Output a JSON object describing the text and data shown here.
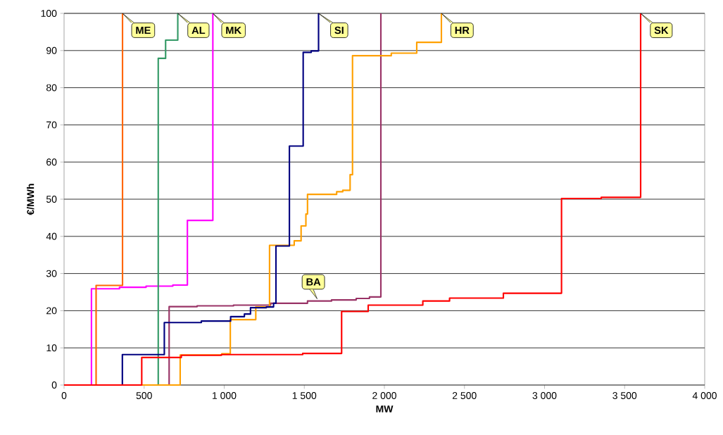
{
  "chart_data": {
    "type": "step",
    "xlabel": "MW",
    "ylabel": "€/MWh",
    "xlim": [
      0,
      4000
    ],
    "ylim": [
      0,
      100
    ],
    "xticks": [
      0,
      500,
      {
        "value": 1000,
        "label": "1 000"
      },
      {
        "value": 1500,
        "label": "1 500"
      },
      {
        "value": 2000,
        "label": "2 000"
      },
      {
        "value": 2500,
        "label": "2 500"
      },
      {
        "value": 3000,
        "label": "3 000"
      },
      {
        "value": 3500,
        "label": "3 500"
      },
      {
        "value": 4000,
        "label": "4 000"
      }
    ],
    "yticks": [
      0,
      10,
      20,
      30,
      40,
      50,
      60,
      70,
      80,
      90,
      100
    ],
    "grid": "y",
    "marker": "none",
    "line_style": "solid",
    "series": [
      {
        "color": "#ff00ff",
        "x": [
          0,
          171,
          346,
          512,
          679,
          770,
          929
        ],
        "values": [
          0,
          25.9,
          26.3,
          26.6,
          26.9,
          44.3,
          100
        ]
      },
      {
        "color": "#ff6600",
        "x": [
          0,
          200,
          365
        ],
        "values": [
          0,
          26.8,
          100
        ]
      },
      {
        "color": "#339966",
        "x": [
          0,
          588,
          634,
          710
        ],
        "values": [
          0,
          87.9,
          92.8,
          100
        ]
      },
      {
        "color": "#993366",
        "x": [
          0,
          656,
          831,
          1058,
          1290,
          1520,
          1670,
          1824,
          1907,
          1978
        ],
        "values": [
          0,
          21.1,
          21.3,
          21.5,
          22.0,
          22.6,
          22.9,
          23.3,
          23.7,
          100
        ]
      },
      {
        "color": "#ffa000",
        "x": [
          0,
          725,
          985,
          1038,
          1197,
          1283,
          1437,
          1480,
          1510,
          1520,
          1702,
          1740,
          1786,
          1801,
          2043,
          2202,
          2356
        ],
        "values": [
          0,
          8.1,
          8.4,
          17.6,
          21.0,
          37.6,
          38.8,
          42.8,
          46.0,
          51.3,
          52.0,
          52.4,
          56.6,
          88.6,
          89.3,
          92.2,
          100
        ]
      },
      {
        "color": "#000080",
        "x": [
          0,
          364,
          626,
          857,
          1040,
          1126,
          1164,
          1263,
          1308,
          1323,
          1407,
          1493,
          1543,
          1589
        ],
        "values": [
          0,
          8.2,
          16.8,
          17.2,
          18.4,
          19.1,
          20.8,
          21.0,
          22.0,
          37.4,
          64.3,
          89.5,
          89.9,
          100
        ]
      },
      {
        "color": "#ff0000",
        "x": [
          0,
          485,
          732,
          982,
          1490,
          1733,
          1899,
          2240,
          2407,
          2743,
          3106,
          3354,
          3600
        ],
        "values": [
          0,
          7.4,
          8.0,
          8.2,
          8.5,
          19.8,
          21.5,
          22.6,
          23.4,
          24.7,
          50.2,
          50.5,
          100
        ]
      }
    ],
    "annotations": [
      {
        "text": "ME",
        "x": 365,
        "y": 100
      },
      {
        "text": "AL",
        "x": 710,
        "y": 100
      },
      {
        "text": "MK",
        "x": 929,
        "y": 100
      },
      {
        "text": "SI",
        "x": 1589,
        "y": 100
      },
      {
        "text": "HR",
        "x": 2356,
        "y": 100
      },
      {
        "text": "SK",
        "x": 3600,
        "y": 100
      },
      {
        "text": "BA",
        "x": 1580,
        "y": 23.2
      }
    ]
  }
}
